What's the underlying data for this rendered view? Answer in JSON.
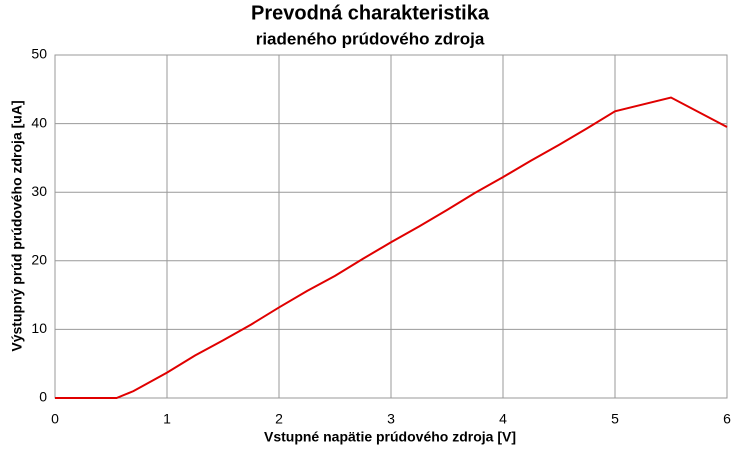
{
  "chart_data": {
    "type": "line",
    "title": "Prevodná charakteristika",
    "subtitle": "riadeného prúdového zdroja",
    "x_label": "Vstupné napätie prúdového zdroja [V]",
    "y_label": "Výstupný prúd prúdového zdroja [uA]",
    "x": [
      0,
      0.55,
      0.7,
      1,
      1.25,
      1.5,
      1.75,
      2,
      2.25,
      2.5,
      2.75,
      3,
      3.25,
      3.5,
      3.75,
      4,
      4.25,
      4.5,
      4.75,
      5,
      5.5,
      6
    ],
    "series": [
      {
        "color": "#e00000",
        "values": [
          0,
          0,
          1,
          3.7,
          6.2,
          8.4,
          10.7,
          13.2,
          15.6,
          17.8,
          20.3,
          22.7,
          25,
          27.4,
          29.9,
          32.2,
          34.6,
          36.9,
          39.3,
          41.8,
          43.8,
          39.5
        ]
      }
    ],
    "xlim": [
      0,
      6
    ],
    "xticks": [
      0,
      1,
      2,
      3,
      4,
      5,
      6
    ],
    "ylim": [
      0,
      50
    ],
    "yticks": [
      0,
      10,
      20,
      30,
      40,
      50
    ],
    "grid": true
  }
}
